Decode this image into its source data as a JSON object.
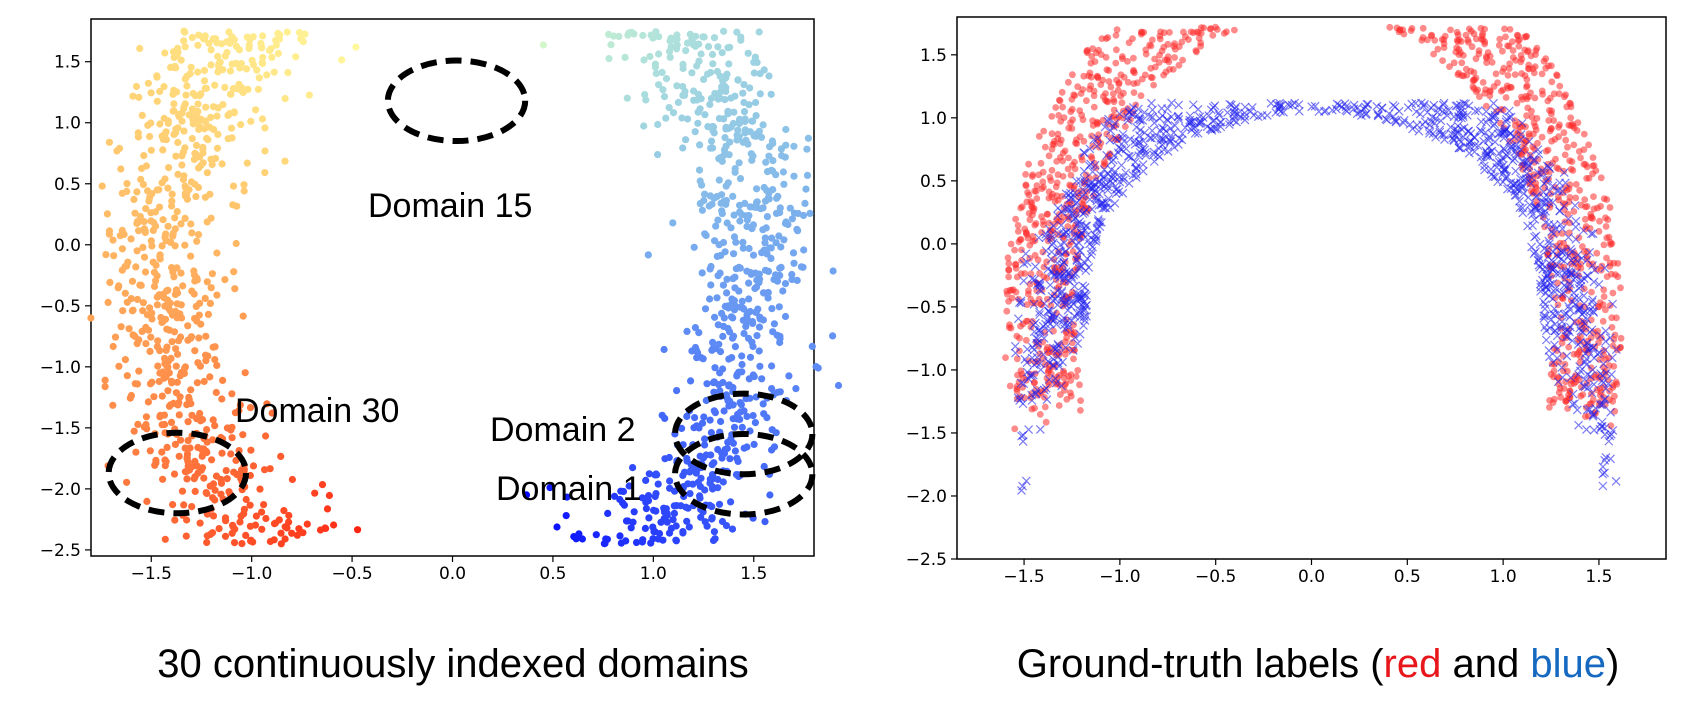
{
  "captions": {
    "left": "30 continuously indexed domains",
    "right_prefix": "Ground-truth labels (",
    "right_red": "red",
    "right_and": " and ",
    "right_blue": "blue",
    "right_suffix": ")"
  },
  "colors": {
    "red_word": "#e8161b",
    "blue_word": "#1569c1",
    "red_points": "#ff2a2a",
    "blue_points": "#2222ee",
    "domain_circles": "#000000"
  },
  "chart_data": [
    {
      "type": "scatter",
      "colormap": "rainbow",
      "xlim": [
        -1.8,
        1.8
      ],
      "ylim": [
        -2.55,
        1.85
      ],
      "xticks": [
        -1.5,
        -1.0,
        -0.5,
        0.0,
        0.5,
        1.0,
        1.5
      ],
      "xtick_labels": [
        "−1.5",
        "−1.0",
        "−0.5",
        "0.0",
        "0.5",
        "1.0",
        "1.5"
      ],
      "yticks": [
        1.5,
        1.0,
        0.5,
        0.0,
        -0.5,
        -1.0,
        -1.5,
        -2.0,
        -2.5
      ],
      "ytick_labels": [
        "1.5",
        "1.0",
        "0.5",
        "0.0",
        "−0.5",
        "−1.0",
        "−1.5",
        "−2.0",
        "−2.5"
      ],
      "grid": false,
      "data_shape": "half-ring arc from (1.45, -1.9) over (0, 1.25) to (-1.38, -1.9), points colored by domain index 1 (violet) to 30 (red)",
      "num_domains": 30,
      "domain_circles": [
        {
          "label": "Domain 15",
          "center": [
            0.02,
            1.18
          ],
          "radius": 0.3
        },
        {
          "label": "Domain 30",
          "center": [
            -1.37,
            -1.87
          ],
          "radius": 0.3
        },
        {
          "label": "Domain 2",
          "center": [
            1.45,
            -1.55
          ],
          "radius": 0.3
        },
        {
          "label": "Domain 1",
          "center": [
            1.45,
            -1.88
          ],
          "radius": 0.3
        }
      ],
      "annotations": [
        "Domain 15",
        "Domain 30",
        "Domain 2",
        "Domain 1"
      ]
    },
    {
      "type": "scatter",
      "xlim": [
        -1.85,
        1.85
      ],
      "ylim": [
        -2.5,
        1.8
      ],
      "xticks": [
        -1.5,
        -1.0,
        -0.5,
        0.0,
        0.5,
        1.0,
        1.5
      ],
      "xtick_labels": [
        "−1.5",
        "−1.0",
        "−0.5",
        "0.0",
        "0.5",
        "1.0",
        "1.5"
      ],
      "yticks": [
        1.5,
        1.0,
        0.5,
        0.0,
        -0.5,
        -1.0,
        -1.5,
        -2.0,
        -2.5
      ],
      "ytick_labels": [
        "1.5",
        "1.0",
        "0.5",
        "0.0",
        "−0.5",
        "−1.0",
        "−1.5",
        "−2.0",
        "−2.5"
      ],
      "grid": false,
      "series": [
        {
          "label": "red",
          "marker": "o",
          "color": "#ff2a2a",
          "shape": "outer half-ring, radius 1.25–1.6, y from -2.35 to 1.7"
        },
        {
          "label": "blue",
          "marker": "x",
          "color": "#2222ee",
          "shape": "inner half-ring, radius 0.95–1.25, y from -2.3 to 1.1"
        }
      ]
    }
  ]
}
